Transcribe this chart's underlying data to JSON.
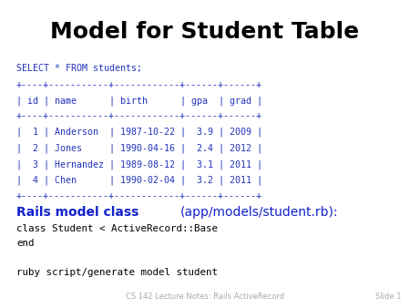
{
  "title": "Model for Student Table",
  "title_fontsize": 18,
  "title_color": "#000000",
  "bg_color": "#ffffff",
  "code_color": "#2233bb",
  "code_black": "#000000",
  "sql_block": [
    "SELECT * FROM students;",
    "+----+-----------+------------+------+------+",
    "| id | name      | birth      | gpa  | grad |",
    "+----+-----------+------------+------+------+",
    "|  1 | Anderson  | 1987-10-22 |  3.9 | 2009 |",
    "|  2 | Jones     | 1990-04-16 |  2.4 | 2012 |",
    "|  3 | Hernandez | 1989-08-12 |  3.1 | 2011 |",
    "|  4 | Chen      | 1990-02-04 |  3.2 | 2011 |",
    "+----+-----------+------------+------+------+"
  ],
  "sql_fontsize": 7.2,
  "rails_label_bold": "Rails model class ",
  "rails_label_normal": "(app/models/student.rb):",
  "rails_label_color": "#1122cc",
  "rails_label_fontsize": 10,
  "code_block": [
    "class Student < ActiveRecord::Base",
    "end",
    "",
    "ruby script/generate model student"
  ],
  "code_fontsize": 7.8,
  "footer_left": "CS 142 Lecture Notes: Rails ActiveRecord",
  "footer_right": "Slide 1",
  "footer_color": "#aaaaaa",
  "footer_fontsize": 6
}
